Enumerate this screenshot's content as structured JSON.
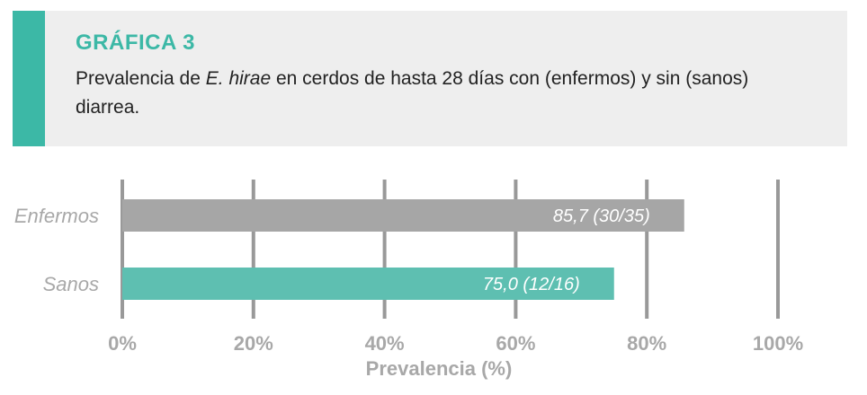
{
  "header": {
    "label": "GRÁFICA 3",
    "title_pre": "Prevalencia de ",
    "title_italic": "E. hirae",
    "title_post": " en cerdos de hasta 28 días con (enfermos) y sin (sanos) diarrea."
  },
  "colors": {
    "accent": "#3cb8a6",
    "header_bg": "#eeeeee",
    "gridline": "#999999",
    "bar_enfermos": "#a6a6a6",
    "bar_sanos": "#5ebfb1",
    "tick_text": "#a8a8a8"
  },
  "chart_data": {
    "type": "bar",
    "orientation": "horizontal",
    "categories": [
      "Enfermos",
      "Sanos"
    ],
    "values": [
      85.7,
      75.0
    ],
    "value_labels": [
      "85,7 (30/35)",
      "75,0 (12/16)"
    ],
    "xlabel": "Prevalencia (%)",
    "xlim": [
      0,
      100
    ],
    "xticks": [
      0,
      20,
      40,
      60,
      80,
      100
    ],
    "xtick_labels": [
      "0%",
      "20%",
      "40%",
      "60%",
      "80%",
      "100%"
    ],
    "grid": "vertical"
  }
}
